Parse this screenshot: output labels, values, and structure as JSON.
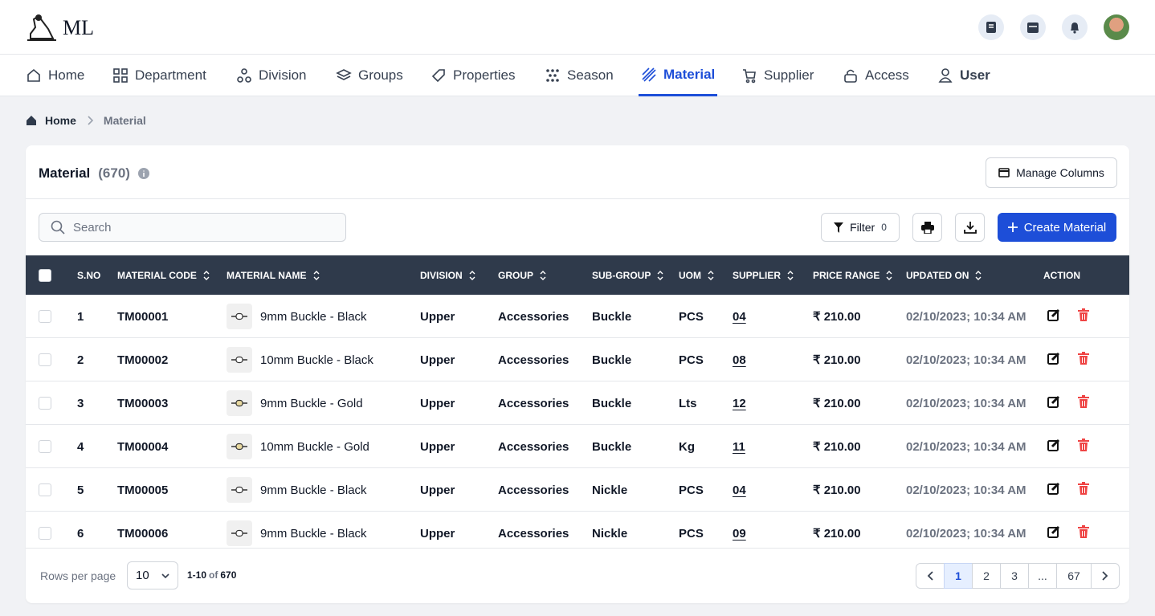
{
  "header": {
    "logo": "ML"
  },
  "nav": [
    "Home",
    "Department",
    "Division",
    "Groups",
    "Properties",
    "Season",
    "Material",
    "Supplier",
    "Access",
    "User"
  ],
  "breadcrumb": [
    "Home",
    "Material"
  ],
  "card": {
    "title": "Material",
    "count": "(670)",
    "manage_columns": "Manage Columns"
  },
  "toolbar": {
    "search_placeholder": "Search",
    "filter": "Filter",
    "filter_count": 0,
    "create": "Create Material"
  },
  "table": {
    "columns": [
      "S.NO",
      "MATERIAL CODE",
      "MATERIAL NAME",
      "DIVISION",
      "GROUP",
      "SUB-GROUP",
      "UOM",
      "SUPPLIER",
      "PRICE RANGE",
      "UPDATED ON",
      "ACTION"
    ],
    "rows": [
      [
        1,
        "TM00001",
        "9mm Buckle - Black",
        "Upper",
        "Accessories",
        "Buckle",
        "PCS",
        "04",
        "₹ 210.00",
        "02/10/2023; 10:34 AM"
      ],
      [
        2,
        "TM00002",
        "10mm Buckle - Black",
        "Upper",
        "Accessories",
        "Buckle",
        "PCS",
        "08",
        "₹ 210.00",
        "02/10/2023; 10:34 AM"
      ],
      [
        3,
        "TM00003",
        "9mm Buckle - Gold",
        "Upper",
        "Accessories",
        "Buckle",
        "Lts",
        "12",
        "₹ 210.00",
        "02/10/2023; 10:34 AM"
      ],
      [
        4,
        "TM00004",
        "10mm Buckle - Gold",
        "Upper",
        "Accessories",
        "Buckle",
        "Kg",
        "11",
        "₹ 210.00",
        "02/10/2023; 10:34 AM"
      ],
      [
        5,
        "TM00005",
        "9mm Buckle - Black",
        "Upper",
        "Accessories",
        "Nickle",
        "PCS",
        "04",
        "₹ 210.00",
        "02/10/2023; 10:34 AM"
      ],
      [
        6,
        "TM00006",
        "9mm Buckle - Black",
        "Upper",
        "Accessories",
        "Nickle",
        "PCS",
        "09",
        "₹ 210.00",
        "02/10/2023; 10:34 AM"
      ]
    ]
  },
  "footer": {
    "rows_per_page_label": "Rows per page",
    "rows_per_page": 10,
    "range": "1-10",
    "of": "of",
    "total": "670",
    "pages": [
      1,
      2,
      3,
      "...",
      67
    ]
  }
}
